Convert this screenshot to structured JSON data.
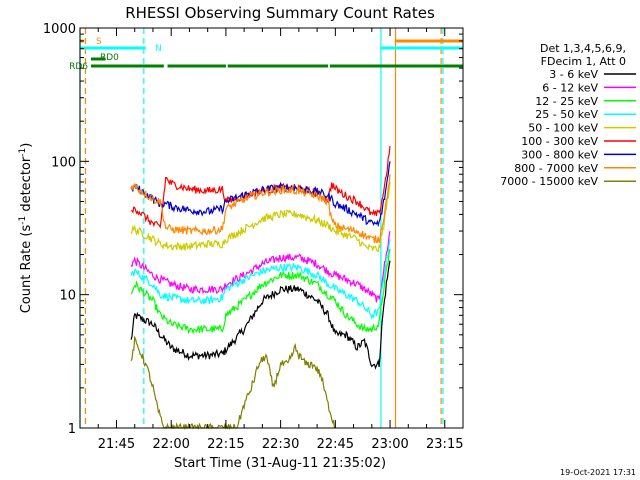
{
  "chart_data": {
    "type": "line",
    "title": "RHESSI Observing Summary Count Rates",
    "xlabel": "Start Time (31-Aug-11 21:35:02)",
    "ylabel_main": "Count Rate (s",
    "ylabel_exp1": "-1",
    "ylabel_mid": " detector",
    "ylabel_exp2": "-1",
    "ylabel_end": ")",
    "timestamp": "19-Oct-2021 17:31",
    "x_tick_labels": [
      "21:45",
      "22:00",
      "22:15",
      "22:30",
      "22:45",
      "23:00",
      "23:15"
    ],
    "x_tick_minutes": [
      10,
      25,
      40,
      55,
      70,
      85,
      100
    ],
    "xlim_minutes": [
      0,
      105
    ],
    "y_scale": "log",
    "ylim": [
      1,
      1000
    ],
    "y_tick_labels": [
      "1",
      "10",
      "100",
      "1000"
    ],
    "y_tick_values": [
      1,
      10,
      100,
      1000
    ],
    "legend": {
      "header": [
        "Det 1,3,4,5,6,9,",
        "FDecim 1, Att 0"
      ],
      "placement": "right",
      "entries": [
        {
          "label": "3 - 6 keV",
          "color": "#000000"
        },
        {
          "label": "6 - 12 keV",
          "color": "#ff00ff"
        },
        {
          "label": "12 - 25 keV",
          "color": "#00ff00"
        },
        {
          "label": "25 - 50 keV",
          "color": "#00ffff"
        },
        {
          "label": "50 - 100 keV",
          "color": "#cccc00"
        },
        {
          "label": "100 - 300 keV",
          "color": "#ff0000"
        },
        {
          "label": "300 - 800 keV",
          "color": "#0000cc"
        },
        {
          "label": "800 - 7000 keV",
          "color": "#ff8800"
        },
        {
          "label": "7000 - 15000 keV",
          "color": "#808000"
        }
      ]
    },
    "flags": [
      {
        "label": "S",
        "color": "#ff8800",
        "segments": [
          [
            -2,
            1
          ],
          [
            86.5,
            105
          ]
        ]
      },
      {
        "label": "N",
        "color": "#00ffff",
        "segments": [
          [
            -2,
            18
          ],
          [
            82.5,
            105
          ]
        ]
      },
      {
        "label": "RD0",
        "color": "#008000",
        "segments": [
          [
            3,
            7
          ]
        ]
      },
      {
        "label": "RD6",
        "color": "#008000",
        "segments": [
          [
            3,
            23
          ],
          [
            24,
            40
          ],
          [
            40.5,
            68
          ],
          [
            68.5,
            105
          ]
        ]
      }
    ],
    "vertical_markers": [
      {
        "minute": -1,
        "color": "#00ffff",
        "style": "solid"
      },
      {
        "minute": 1.5,
        "color": "#ff8800",
        "style": "dashed"
      },
      {
        "minute": 17.5,
        "color": "#00ffff",
        "style": "dashed"
      },
      {
        "minute": 82.5,
        "color": "#00ffff",
        "style": "solid"
      },
      {
        "minute": 86.5,
        "color": "#ff8800",
        "style": "solid"
      },
      {
        "minute": 99,
        "color": "#ff8800",
        "style": "dashed"
      },
      {
        "minute": 99.5,
        "color": "#00ffff",
        "style": "dashed"
      }
    ],
    "series": [
      {
        "name": "3 - 6 keV",
        "color": "#000000",
        "x": [
          14,
          15,
          20,
          22,
          25,
          30,
          35,
          39,
          45,
          50,
          55,
          60,
          65,
          68,
          70,
          73,
          76,
          78,
          80,
          82,
          83,
          84,
          85
        ],
        "y": [
          4.5,
          7,
          6,
          5,
          4,
          3.5,
          3.5,
          3.6,
          5.5,
          9,
          11,
          11,
          9,
          7,
          5,
          5,
          4,
          4.5,
          3,
          3,
          7,
          12,
          18
        ]
      },
      {
        "name": "6 - 12 keV",
        "color": "#ff00ff",
        "x": [
          14,
          15,
          20,
          22,
          25,
          30,
          35,
          39,
          40,
          45,
          50,
          55,
          60,
          65,
          68,
          70,
          73,
          76,
          78,
          80,
          82,
          83,
          84,
          85
        ],
        "y": [
          17,
          18,
          14,
          13,
          12,
          11,
          11,
          11,
          12,
          14,
          17,
          19,
          19,
          17,
          15,
          14,
          13,
          12,
          11,
          10,
          9,
          14,
          20,
          30
        ]
      },
      {
        "name": "12 - 25 keV",
        "color": "#00ff00",
        "x": [
          14,
          15,
          20,
          22,
          25,
          30,
          35,
          39,
          40,
          45,
          50,
          55,
          60,
          65,
          68,
          70,
          73,
          76,
          78,
          80,
          82,
          83,
          84,
          85
        ],
        "y": [
          10,
          12,
          9,
          7,
          6,
          5.5,
          5.5,
          5.5,
          7,
          9,
          12,
          14,
          14,
          12,
          10,
          9,
          7,
          6,
          5.5,
          5.5,
          6,
          10,
          15,
          22
        ]
      },
      {
        "name": "25 - 50 keV",
        "color": "#00ffff",
        "x": [
          14,
          15,
          20,
          22,
          25,
          30,
          35,
          39,
          40,
          45,
          50,
          55,
          60,
          65,
          68,
          70,
          73,
          76,
          78,
          80,
          82,
          83,
          84,
          85
        ],
        "y": [
          14,
          15,
          12,
          10,
          9.5,
          9,
          9,
          9.5,
          11,
          13,
          15,
          16,
          16,
          14,
          12,
          11,
          10,
          9,
          8,
          7,
          7.5,
          12,
          18,
          26
        ]
      },
      {
        "name": "50 - 100 keV",
        "color": "#cccc00",
        "x": [
          14,
          15,
          20,
          22,
          25,
          30,
          35,
          39,
          40,
          45,
          50,
          55,
          60,
          65,
          68,
          70,
          73,
          76,
          78,
          80,
          82,
          83,
          84,
          85
        ],
        "y": [
          30,
          31,
          26,
          24,
          23,
          23,
          24,
          24,
          26,
          31,
          37,
          40,
          40,
          36,
          33,
          30,
          28,
          26,
          23,
          22,
          22,
          30,
          45,
          70
        ]
      },
      {
        "name": "100 - 300 keV",
        "color": "#ff0000",
        "x": [
          14,
          15,
          20,
          22,
          23.5,
          25,
          30,
          35,
          39,
          40,
          45,
          50,
          55,
          60,
          65,
          68,
          69,
          70,
          73,
          76,
          78,
          80,
          82,
          83,
          84,
          85
        ],
        "y": [
          40,
          45,
          34,
          32,
          75,
          68,
          62,
          60,
          62,
          50,
          55,
          60,
          63,
          63,
          57,
          52,
          68,
          62,
          55,
          50,
          45,
          40,
          40,
          55,
          80,
          130
        ]
      },
      {
        "name": "300 - 800 keV",
        "color": "#0000cc",
        "x": [
          14,
          15,
          20,
          22,
          23.5,
          25,
          30,
          35,
          39,
          40,
          45,
          50,
          55,
          60,
          65,
          68,
          69,
          70,
          73,
          76,
          78,
          80,
          82,
          83,
          84,
          85
        ],
        "y": [
          60,
          65,
          52,
          48,
          48,
          46,
          43,
          42,
          44,
          50,
          56,
          61,
          64,
          63,
          59,
          55,
          52,
          48,
          44,
          40,
          37,
          34,
          34,
          45,
          65,
          100
        ]
      },
      {
        "name": "800 - 7000 keV",
        "color": "#ff8800",
        "x": [
          14,
          15,
          20,
          22,
          23.5,
          25,
          30,
          35,
          39,
          40,
          45,
          50,
          55,
          60,
          65,
          68,
          69,
          70,
          73,
          76,
          78,
          80,
          82,
          83,
          84,
          85
        ],
        "y": [
          65,
          65,
          52,
          50,
          32,
          31,
          30,
          30,
          31,
          44,
          52,
          58,
          61,
          60,
          55,
          50,
          36,
          33,
          31,
          30,
          28,
          26,
          26,
          35,
          50,
          80
        ]
      },
      {
        "name": "7000 - 15000 keV",
        "color": "#808000",
        "x": [
          14,
          15,
          17,
          18,
          19,
          20,
          21,
          22,
          23,
          25,
          30,
          35,
          39,
          41,
          43,
          45,
          47,
          49,
          51,
          53,
          55,
          57,
          59,
          60,
          62,
          64,
          66,
          68,
          70
        ],
        "y": [
          3,
          4.5,
          3.5,
          3,
          2.5,
          2,
          1.5,
          1.2,
          1,
          1,
          1,
          1,
          1,
          1,
          1,
          1.5,
          2,
          3,
          3.5,
          2,
          3,
          3,
          4,
          3.5,
          3,
          3,
          2.5,
          1.5,
          1
        ]
      }
    ]
  }
}
